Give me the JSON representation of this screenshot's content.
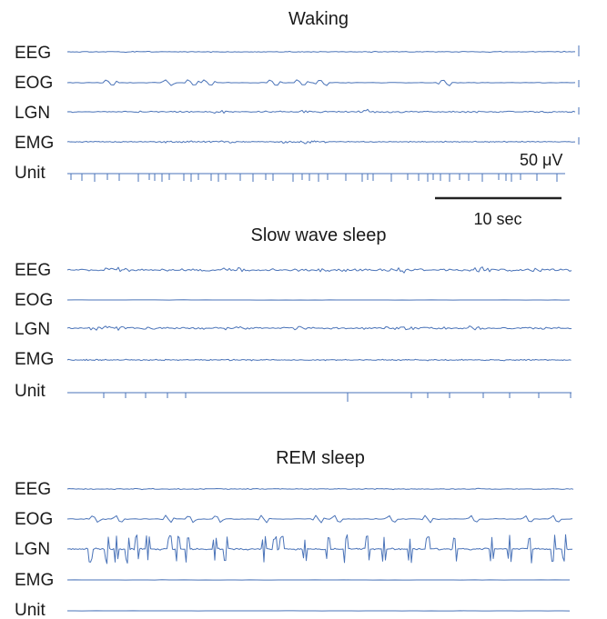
{
  "trace_color": "#4a73b8",
  "panels": [
    {
      "title": "Waking",
      "channels": [
        {
          "label": "EEG",
          "pattern": "eeg-waking"
        },
        {
          "label": "EOG",
          "pattern": "eog-waking"
        },
        {
          "label": "LGN",
          "pattern": "lgn-waking"
        },
        {
          "label": "EMG",
          "pattern": "emg-waking"
        },
        {
          "label": "Unit",
          "pattern": "unit-dense"
        }
      ]
    },
    {
      "title": "Slow wave sleep",
      "channels": [
        {
          "label": "EEG",
          "pattern": "eeg-slow-wave"
        },
        {
          "label": "EOG",
          "pattern": "flat"
        },
        {
          "label": "LGN",
          "pattern": "lgn-slow-wave"
        },
        {
          "label": "EMG",
          "pattern": "emg-slow-wave"
        },
        {
          "label": "Unit",
          "pattern": "unit-sparse"
        }
      ]
    },
    {
      "title": "REM sleep",
      "channels": [
        {
          "label": "EEG",
          "pattern": "eeg-rem"
        },
        {
          "label": "EOG",
          "pattern": "eog-rem"
        },
        {
          "label": "LGN",
          "pattern": "lgn-rem-pgo-spikes"
        },
        {
          "label": "EMG",
          "pattern": "flat"
        },
        {
          "label": "Unit",
          "pattern": "flat"
        }
      ]
    }
  ],
  "scale_bars": {
    "voltage": "50 μV",
    "time": "10 sec"
  }
}
